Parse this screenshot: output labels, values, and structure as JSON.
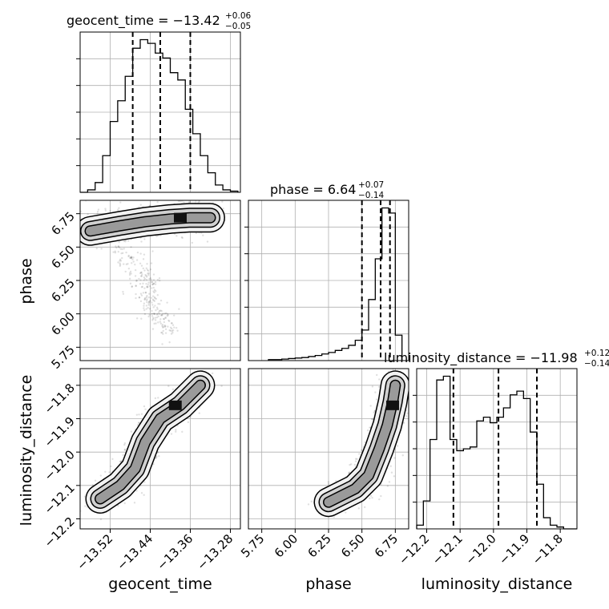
{
  "chart_data": {
    "type": "corner",
    "parameters": [
      {
        "name": "geocent_time",
        "label": "geocent_time",
        "title": {
          "main": "geocent_time = −13.42",
          "plus": "+0.06",
          "minus": "−0.05"
        },
        "range": [
          -13.58,
          -13.26
        ],
        "ticks": [
          -13.52,
          -13.44,
          -13.36,
          -13.28
        ],
        "tick_labels": [
          "−13.52",
          "−13.44",
          "−13.36",
          "−13.28"
        ],
        "quantiles": [
          -13.475,
          -13.42,
          -13.36
        ],
        "hist_edges": [
          -13.58,
          -13.565,
          -13.55,
          -13.535,
          -13.52,
          -13.505,
          -13.49,
          -13.475,
          -13.46,
          -13.445,
          -13.43,
          -13.415,
          -13.4,
          -13.385,
          -13.37,
          -13.355,
          -13.34,
          -13.325,
          -13.31,
          -13.295,
          -13.28,
          -13.265
        ],
        "hist_counts": [
          0,
          2,
          8,
          30,
          58,
          75,
          95,
          118,
          125,
          122,
          114,
          110,
          98,
          92,
          68,
          48,
          30,
          16,
          6,
          2,
          1
        ]
      },
      {
        "name": "phase",
        "label": "phase",
        "title": {
          "main": "phase = 6.64",
          "plus": "+0.07",
          "minus": "−0.14"
        },
        "range": [
          5.65,
          6.85
        ],
        "ticks": [
          5.75,
          6.0,
          6.25,
          6.5,
          6.75
        ],
        "tick_labels": [
          "5.75",
          "6.00",
          "6.25",
          "6.50",
          "6.75"
        ],
        "quantiles": [
          6.5,
          6.64,
          6.71
        ],
        "hist_edges": [
          5.8,
          5.85,
          5.9,
          5.95,
          6.0,
          6.05,
          6.1,
          6.15,
          6.2,
          6.25,
          6.3,
          6.35,
          6.4,
          6.45,
          6.5,
          6.55,
          6.6,
          6.65,
          6.7,
          6.75,
          6.8
        ],
        "hist_counts": [
          2,
          2,
          3,
          4,
          5,
          6,
          8,
          10,
          13,
          16,
          20,
          24,
          30,
          40,
          60,
          120,
          200,
          300,
          290,
          50
        ]
      },
      {
        "name": "luminosity_distance",
        "label": "luminosity_distance",
        "title": {
          "main": "luminosity_distance = −11.98",
          "plus": "+0.12",
          "minus": "−0.14"
        },
        "range": [
          -12.23,
          -11.75
        ],
        "ticks": [
          -12.2,
          -12.1,
          -12.0,
          -11.9,
          -11.8
        ],
        "tick_labels": [
          "−12.2",
          "−12.1",
          "−12.0",
          "−11.9",
          "−11.8"
        ],
        "quantiles": [
          -12.12,
          -11.985,
          -11.87
        ],
        "hist_edges": [
          -12.23,
          -12.21,
          -12.19,
          -12.17,
          -12.15,
          -12.13,
          -12.11,
          -12.09,
          -12.07,
          -12.05,
          -12.03,
          -12.01,
          -11.99,
          -11.97,
          -11.95,
          -11.93,
          -11.91,
          -11.89,
          -11.87,
          -11.85,
          -11.83,
          -11.81,
          -11.79,
          -11.77,
          -11.75
        ],
        "hist_counts": [
          2,
          15,
          48,
          80,
          82,
          48,
          42,
          43,
          44,
          58,
          60,
          57,
          60,
          65,
          72,
          74,
          70,
          52,
          24,
          6,
          2,
          1,
          0,
          0
        ]
      }
    ],
    "joint_2d": [
      {
        "x": "geocent_time",
        "y": "phase",
        "high_density_center": [
          -13.38,
          6.72
        ],
        "ridge": [
          [
            -13.56,
            6.62
          ],
          [
            -13.5,
            6.66
          ],
          [
            -13.45,
            6.69
          ],
          [
            -13.4,
            6.71
          ],
          [
            -13.36,
            6.72
          ],
          [
            -13.32,
            6.72
          ]
        ],
        "tail": [
          [
            -13.5,
            6.5
          ],
          [
            -13.46,
            6.3
          ],
          [
            -13.44,
            6.15
          ],
          [
            -13.43,
            6.0
          ],
          [
            -13.4,
            5.9
          ]
        ]
      },
      {
        "x": "geocent_time",
        "y": "luminosity_distance",
        "high_density_center": [
          -13.39,
          -11.86
        ],
        "ridge": [
          [
            -13.54,
            -12.14
          ],
          [
            -13.5,
            -12.1
          ],
          [
            -13.47,
            -12.05
          ],
          [
            -13.45,
            -11.97
          ],
          [
            -13.42,
            -11.9
          ],
          [
            -13.38,
            -11.86
          ],
          [
            -13.34,
            -11.8
          ]
        ]
      },
      {
        "x": "phase",
        "y": "luminosity_distance",
        "high_density_center": [
          6.73,
          -11.86
        ],
        "ridge": [
          [
            6.25,
            -12.15
          ],
          [
            6.45,
            -12.11
          ],
          [
            6.55,
            -12.07
          ],
          [
            6.63,
            -11.99
          ],
          [
            6.69,
            -11.92
          ],
          [
            6.73,
            -11.85
          ],
          [
            6.75,
            -11.8
          ]
        ]
      }
    ]
  },
  "colors": {
    "contour_fill_light": "#f2f2f2",
    "contour_fill_mid": "#d0d0d0",
    "contour_fill_dark": "#8a8a8a",
    "line": "#000000",
    "grid": "#b0b0b0"
  }
}
